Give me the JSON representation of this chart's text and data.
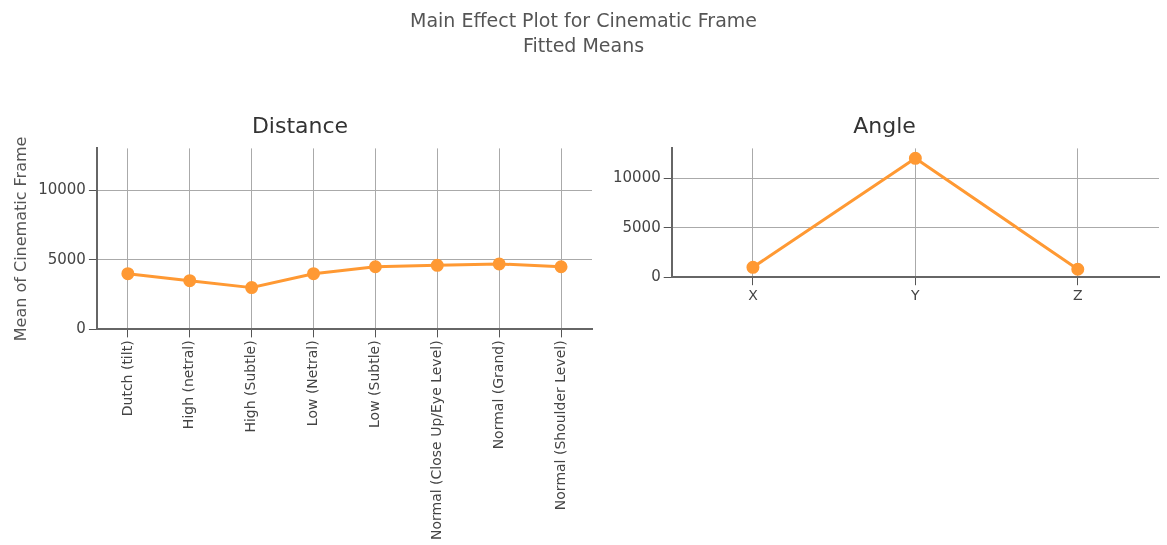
{
  "chart_data": [
    {
      "type": "line",
      "title": "Distance",
      "ylabel": "Mean of Cinematic Frame",
      "annotations": [
        "Main Effect Plot for Cinematic Frame",
        "Fitted Means"
      ],
      "categories": [
        "Dutch (tilt)",
        "High (netral)",
        "High (Subtle)",
        "Low (Netral)",
        "Low (Subtle)",
        "Normal (Close Up/Eye Level)",
        "Normal (Grand)",
        "Normal (Shoulder Level)"
      ],
      "series": [
        {
          "color": "#ff9933",
          "values": [
            4000,
            3500,
            3000,
            4000,
            4500,
            4600,
            4700,
            4500
          ]
        }
      ],
      "ylim": [
        0,
        13000
      ],
      "yticks": [
        0,
        5000,
        10000
      ],
      "grid": true,
      "legend": false,
      "marker": "circle",
      "line_style": "solid"
    },
    {
      "type": "line",
      "title": "Angle",
      "categories": [
        "X",
        "Y",
        "Z"
      ],
      "series": [
        {
          "color": "#ff9933",
          "values": [
            1000,
            12000,
            800
          ]
        }
      ],
      "ylim": [
        0,
        13000
      ],
      "yticks": [
        0,
        5000,
        10000
      ],
      "grid": true,
      "legend": false,
      "marker": "circle",
      "line_style": "solid"
    }
  ]
}
